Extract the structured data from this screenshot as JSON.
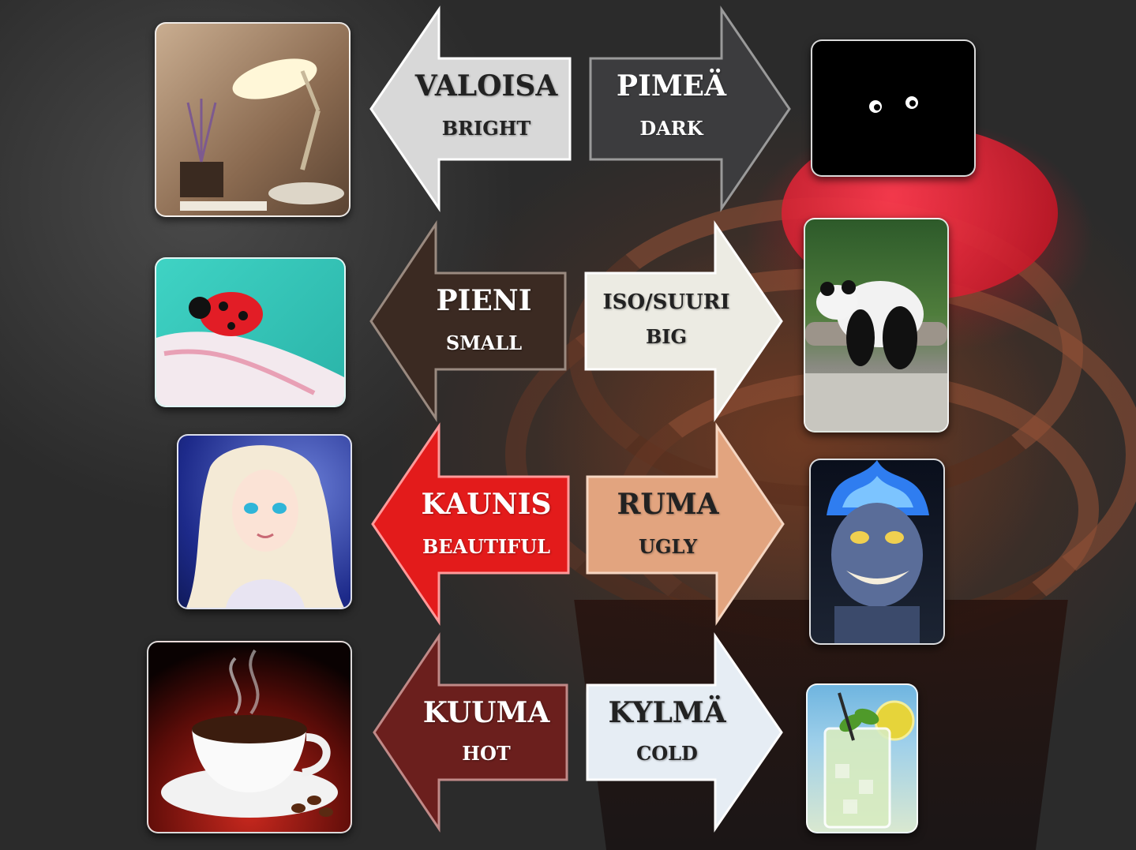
{
  "pairs": [
    {
      "left": {
        "word": "VALOISA",
        "translation": "BRIGHT",
        "fill": "#d8d8d8",
        "text_color": "#222222",
        "picture": "desk-lamp"
      },
      "right": {
        "word": "PIMEÄ",
        "translation": "DARK",
        "fill": "#3c3c3e",
        "text_color": "#ffffff",
        "picture": "eyes-in-dark"
      }
    },
    {
      "left": {
        "word": "PIENI",
        "translation": "SMALL",
        "fill": "#3b2a22",
        "text_color": "#ffffff",
        "picture": "ladybug"
      },
      "right": {
        "word": "ISO/SUURI",
        "translation": "BIG",
        "fill": "#ecebe3",
        "text_color": "#222222",
        "picture": "panda"
      }
    },
    {
      "left": {
        "word": "KAUNIS",
        "translation": "BEAUTIFUL",
        "fill": "#e31b1b",
        "text_color": "#ffffff",
        "picture": "princess"
      },
      "right": {
        "word": "RUMA",
        "translation": "UGLY",
        "fill": "#e2a47f",
        "text_color": "#222222",
        "picture": "blue-flame-villain"
      }
    },
    {
      "left": {
        "word": "KUUMA",
        "translation": "HOT",
        "fill": "#6b1f1d",
        "text_color": "#ffffff",
        "picture": "hot-coffee"
      },
      "right": {
        "word": "KYLMÄ",
        "translation": "COLD",
        "fill": "#e6edf4",
        "text_color": "#222222",
        "picture": "iced-drink"
      }
    }
  ]
}
